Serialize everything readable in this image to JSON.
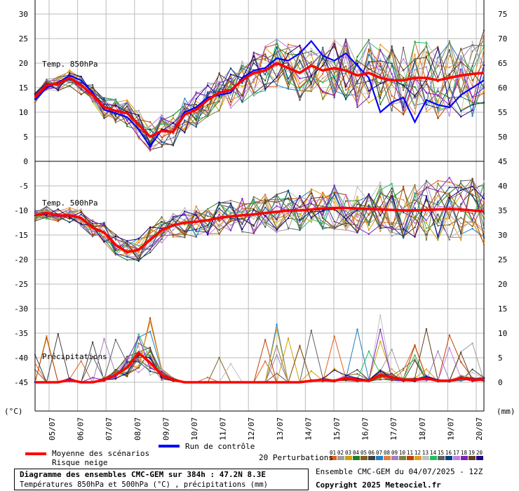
{
  "chart_data": {
    "type": "line",
    "panels": [
      {
        "name": "Temp. 850hPa",
        "y_left_range": [
          0,
          30
        ],
        "y_right_range": [
          45,
          75
        ]
      },
      {
        "name": "Temp. 500hPa",
        "y_left_range": [
          -45,
          -5
        ],
        "y_right_range": [
          0,
          40
        ]
      }
    ],
    "panel_labels": [
      "Temp. 850hPa",
      "Temp. 500hPa",
      "Précipitations"
    ],
    "left_ticks_top": [
      0,
      5,
      10,
      15,
      20,
      25,
      30
    ],
    "left_ticks_bottom": [
      -45,
      -40,
      -35,
      -30,
      -25,
      -20,
      -15,
      -10,
      -5
    ],
    "right_ticks_top": [
      50,
      55,
      60,
      65,
      70,
      75
    ],
    "right_ticks_bottom": [
      0,
      5,
      10,
      15,
      20,
      25,
      30,
      35,
      40,
      45
    ],
    "x_ticks": [
      "05/07",
      "06/07",
      "07/07",
      "08/07",
      "09/07",
      "10/07",
      "11/07",
      "12/07",
      "13/07",
      "14/07",
      "15/07",
      "16/07",
      "17/07",
      "18/07",
      "19/07",
      "20/07"
    ],
    "left_unit": "(°C)",
    "right_unit": "(mm)",
    "temp850_mean": [
      13,
      15.5,
      15.8,
      17,
      15.5,
      13.5,
      11,
      10.3,
      9.8,
      7.5,
      5,
      6.2,
      6,
      9.5,
      10.5,
      12.5,
      14,
      14.5,
      16.5,
      18,
      18.5,
      20,
      19,
      18,
      19.5,
      18.5,
      19,
      18.5,
      17.5,
      18,
      17,
      16.5,
      16.5,
      17,
      17,
      16.5,
      17,
      17.5,
      17.8,
      18
    ],
    "temp850_control": [
      12.5,
      15,
      16,
      17.5,
      16.5,
      14,
      10.5,
      9.8,
      9,
      6.5,
      3,
      6.5,
      6,
      10,
      11,
      13,
      13.5,
      14,
      17,
      18.5,
      19,
      21,
      20.5,
      22,
      24.5,
      21.5,
      20.5,
      22,
      19.5,
      17,
      10,
      12,
      13,
      8,
      12.5,
      11.5,
      11,
      13.5,
      15,
      16.5
    ],
    "temp500_mean": [
      -11,
      -10.5,
      -11,
      -11,
      -11.5,
      -13.5,
      -14.5,
      -17,
      -18.5,
      -18,
      -16,
      -14,
      -13,
      -12.5,
      -12.3,
      -12,
      -11.5,
      -11.2,
      -11,
      -10.8,
      -10.5,
      -10.3,
      -10,
      -10,
      -9.8,
      -9.6,
      -9.5,
      -9.5,
      -9.6,
      -9.7,
      -9.8,
      -9.9,
      -10,
      -10,
      -9.9,
      -9.8,
      -9.7,
      -9.8,
      -10,
      -10.2
    ],
    "precip_mean": [
      0,
      0,
      0,
      0.5,
      0,
      0,
      0.5,
      1.5,
      3,
      6,
      4,
      1.5,
      0.5,
      0,
      0,
      0,
      0,
      0,
      0,
      0,
      0,
      0,
      0,
      0,
      0.3,
      0.5,
      0.3,
      0.8,
      0.5,
      0.3,
      1.5,
      1,
      0.5,
      0.5,
      0.8,
      0.3,
      0.3,
      0.8,
      0.5,
      0.6
    ],
    "perturbation_colors": [
      "#e06020",
      "#a0a0a0",
      "#d4a000",
      "#208020",
      "#806020",
      "#404040",
      "#2080c0",
      "#e08040",
      "#a080c0",
      "#808040",
      "#c04000",
      "#e0a020",
      "#c0c0c0",
      "#20c060",
      "#606060",
      "#004080",
      "#c080e0",
      "#8020c0",
      "#604020",
      "#200080"
    ],
    "perturbation_ids": [
      "01",
      "02",
      "03",
      "04",
      "05",
      "06",
      "07",
      "08",
      "09",
      "10",
      "11",
      "12",
      "13",
      "14",
      "15",
      "16",
      "17",
      "18",
      "19",
      "20"
    ],
    "legend": {
      "mean_label": "Moyenne des scénarios",
      "snow_label": "Risque neige",
      "control_label": "Run de contrôle",
      "perturbations_label": "20 Perturbations",
      "mean_color": "#ff0000",
      "control_color": "#0000ff"
    },
    "title": "Diagramme des ensembles CMC-GEM sur 384h : 47.2N 8.3E",
    "subtitle": "Températures 850hPa et 500hPa (°C) , précipitations (mm)",
    "run_info": "Ensemble CMC-GEM du 04/07/2025 - 12Z",
    "copyright": "Copyright 2025 Meteociel.fr"
  }
}
